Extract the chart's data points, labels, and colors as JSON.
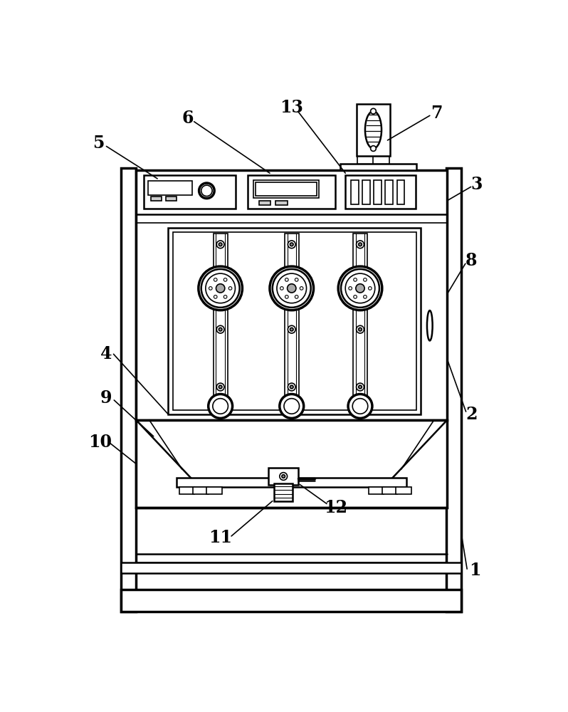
{
  "bg_color": "#ffffff",
  "line_color": "#000000",
  "fig_width": 7.98,
  "fig_height": 10.0
}
